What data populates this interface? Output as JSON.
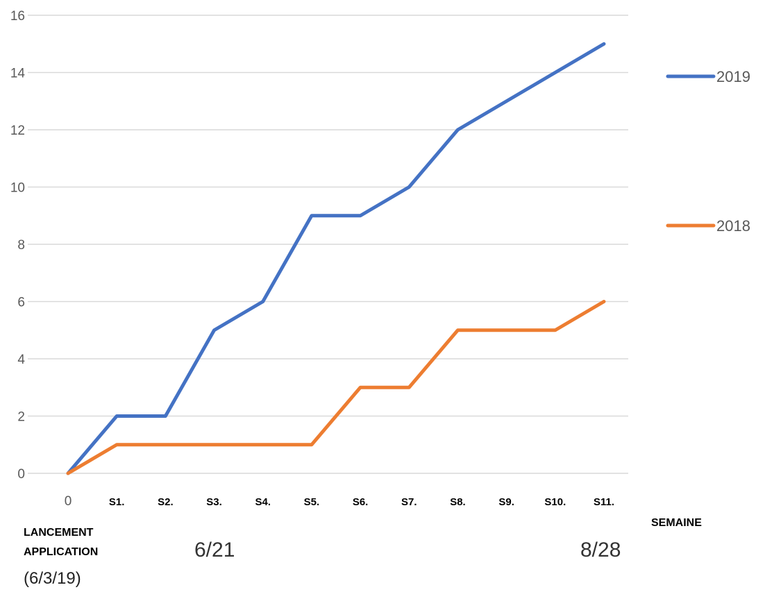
{
  "chart_data": {
    "type": "line",
    "categories": [
      "0",
      "S1.",
      "S2.",
      "S3.",
      "S4.",
      "S5.",
      "S6.",
      "S7.",
      "S8.",
      "S9.",
      "S10.",
      "S11."
    ],
    "series": [
      {
        "name": "2019",
        "color": "#4472C4",
        "values": [
          0,
          2,
          2,
          5,
          6,
          9,
          9,
          10,
          12,
          13,
          14,
          15
        ]
      },
      {
        "name": "2018",
        "color": "#ED7D31",
        "values": [
          0,
          1,
          1,
          1,
          1,
          1,
          3,
          3,
          5,
          5,
          5,
          6
        ]
      }
    ],
    "ylim": [
      0,
      16
    ],
    "yticks": [
      0,
      2,
      4,
      6,
      8,
      10,
      12,
      14,
      16
    ],
    "xlabel": "SEMAINE",
    "grid": true,
    "legend_position": "right"
  },
  "annotations": {
    "launch_line1": "LANCEMENT",
    "launch_line2": "APPLICATION",
    "launch_date": "(6/3/19)",
    "date_mid": "6/21",
    "date_end": "8/28"
  }
}
